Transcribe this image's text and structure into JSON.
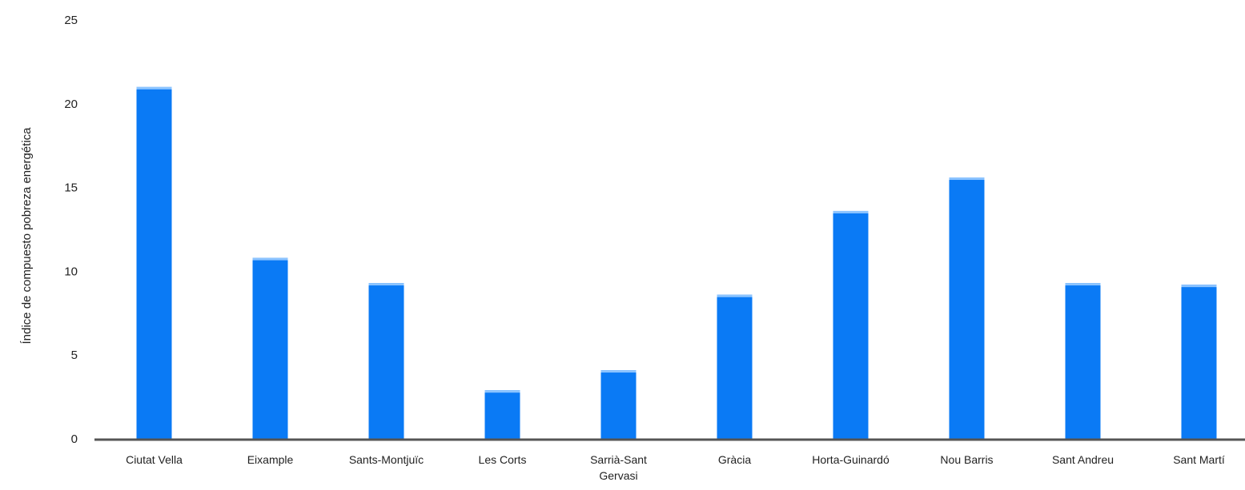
{
  "chart_data": {
    "type": "bar",
    "ylabel": "Índice de compuesto pobreza energética",
    "xlabel": "",
    "ylim": [
      0,
      25
    ],
    "yticks": [
      0,
      5,
      10,
      15,
      20,
      25
    ],
    "grid": false,
    "categories": [
      [
        "Ciutat Vella"
      ],
      [
        "Eixample"
      ],
      [
        "Sants-Montjuïc"
      ],
      [
        "Les Corts"
      ],
      [
        "Sarrià-Sant",
        "Gervasi"
      ],
      [
        "Gràcia"
      ],
      [
        "Horta-Guinardó"
      ],
      [
        "Nou Barris"
      ],
      [
        "Sant Andreu"
      ],
      [
        "Sant Martí"
      ]
    ],
    "values": [
      21.0,
      10.8,
      9.3,
      2.9,
      4.1,
      8.6,
      13.6,
      15.6,
      9.3,
      9.2
    ],
    "colors": {
      "bar": "#0a7af5",
      "bar_top": "#8cc4ff",
      "axis": "#555555",
      "text": "#222222"
    }
  }
}
